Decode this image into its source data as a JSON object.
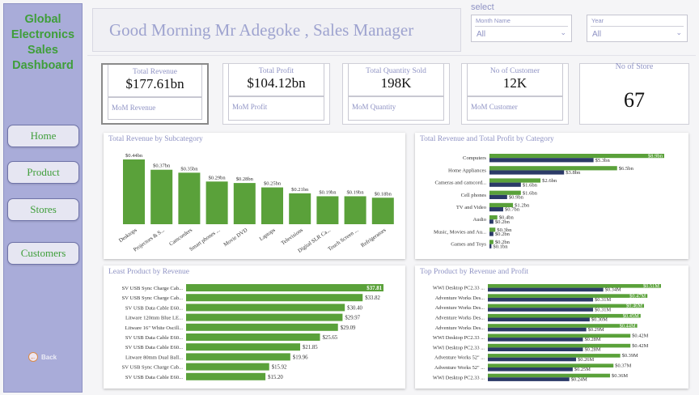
{
  "sidebar": {
    "title": [
      "Global",
      "Electronics",
      "Sales",
      "Dashboard"
    ],
    "nav": [
      "Home",
      "Product",
      "Stores",
      "Customers"
    ],
    "back_label": "Back"
  },
  "header": {
    "greeting": "Good Morning Mr Adegoke , Sales Manager"
  },
  "filters": {
    "title": "select",
    "month": {
      "label": "Month Name",
      "value": "All"
    },
    "year": {
      "label": "Year",
      "value": "All"
    }
  },
  "kpis": [
    {
      "title": "Total Revenue",
      "value": "$177.61bn",
      "mom": "MoM Revenue"
    },
    {
      "title": "Total Profit",
      "value": "$104.12bn",
      "mom": "MoM Profit"
    },
    {
      "title": "Total Quantity Sold",
      "value": "198K",
      "mom": "MoM Quantity"
    },
    {
      "title": "No of Customer",
      "value": "12K",
      "mom": "MoM Customer"
    }
  ],
  "store_kpi": {
    "title": "No of Store",
    "value": "67"
  },
  "colors": {
    "green": "#5aa13a",
    "navy": "#2b3a67",
    "accent": "#8f93c4",
    "title_green": "#3f9e3a"
  },
  "chart_data": [
    {
      "type": "bar",
      "title": "Total Revenue by Subcategory",
      "categories": [
        "Desktops",
        "Projectors & S...",
        "Camcorders",
        "Smart phones ...",
        "Movie DVD",
        "Laptops",
        "Televisions",
        "Digital SLR Ca...",
        "Touch Screen ...",
        "Refrigerators"
      ],
      "values": [
        0.44,
        0.37,
        0.35,
        0.29,
        0.28,
        0.25,
        0.21,
        0.19,
        0.19,
        0.18
      ],
      "labels": [
        "$0.44bn",
        "$0.37bn",
        "$0.35bn",
        "$0.29bn",
        "$0.28bn",
        "$0.25bn",
        "$0.21bn",
        "$0.19bn",
        "$0.19bn",
        "$0.18bn"
      ],
      "ylim": [
        0,
        0.44
      ]
    },
    {
      "type": "bar",
      "title": "Total Revenue and Total Profit by Category",
      "categories": [
        "Computers",
        "Home Appliances",
        "Cameras and camcord...",
        "Cell phones",
        "TV and Video",
        "Audio",
        "Music, Movies and Au...",
        "Games and Toys"
      ],
      "series": [
        {
          "values": [
            8.9,
            6.5,
            2.6,
            1.6,
            1.2,
            0.4,
            0.3,
            0.2
          ],
          "labels": [
            "$8.9bn",
            "$6.5bn",
            "$2.6bn",
            "$1.6bn",
            "$1.2bn",
            "$0.4bn",
            "$0.3bn",
            "$0.2bn"
          ]
        },
        {
          "values": [
            5.3,
            3.8,
            1.6,
            0.9,
            0.7,
            0.2,
            0.2,
            0.1
          ],
          "labels": [
            "$5.3bn",
            "$3.8bn",
            "$1.6bn",
            "$0.9bn",
            "$0.7bn",
            "$0.2bn",
            "$0.2bn",
            "$0.1bn"
          ]
        }
      ],
      "xlim": [
        0,
        8.9
      ]
    },
    {
      "type": "bar",
      "title": "Least Product by Revenue",
      "categories": [
        "SV USB Sync Charge Cab...",
        "SV USB Sync Charge Cab...",
        "SV USB Data Cable E60...",
        "Litware 120mm Blue LE...",
        "Litware 16\" White Oscill...",
        "SV USB Data Cable E60...",
        "SV USB Data Cable E60...",
        "Litware 80mm Dual Ball...",
        "SV USB Sync Charge Cab...",
        "SV USB Data Cable E60..."
      ],
      "values": [
        37.81,
        33.82,
        30.4,
        29.97,
        29.09,
        25.65,
        21.85,
        19.96,
        15.92,
        15.2
      ],
      "labels": [
        "$37.81",
        "$33.82",
        "$30.40",
        "$29.97",
        "$29.09",
        "$25.65",
        "$21.85",
        "$19.96",
        "$15.92",
        "$15.20"
      ],
      "xlim": [
        0,
        37.81
      ]
    },
    {
      "type": "bar",
      "title": "Top Product by Revenue and Profit",
      "categories": [
        "WWI Desktop PC2.33 ...",
        "Adventure Works Des...",
        "Adventure Works Des...",
        "Adventure Works Des...",
        "Adventure Works Des...",
        "WWI Desktop PC2.33 ...",
        "WWI Desktop PC2.33 ...",
        "Adventure Works 52\" ...",
        "Adventure Works 52\" ...",
        "WWI Desktop PC2.33 ..."
      ],
      "series": [
        {
          "values": [
            0.51,
            0.47,
            0.46,
            0.45,
            0.44,
            0.42,
            0.42,
            0.39,
            0.37,
            0.36
          ],
          "labels": [
            "$0.51M",
            "$0.47M",
            "$0.46M",
            "$0.45M",
            "$0.44M",
            "$0.42M",
            "$0.42M",
            "$0.39M",
            "$0.37M",
            "$0.36M"
          ]
        },
        {
          "values": [
            0.34,
            0.31,
            0.31,
            0.3,
            0.29,
            0.28,
            0.28,
            0.26,
            0.25,
            0.24
          ],
          "labels": [
            "$0.34M",
            "$0.31M",
            "$0.31M",
            "$0.30M",
            "$0.29M",
            "$0.28M",
            "$0.28M",
            "$0.26M",
            "$0.25M",
            "$0.24M"
          ]
        }
      ],
      "xlim": [
        0,
        0.51
      ]
    }
  ]
}
